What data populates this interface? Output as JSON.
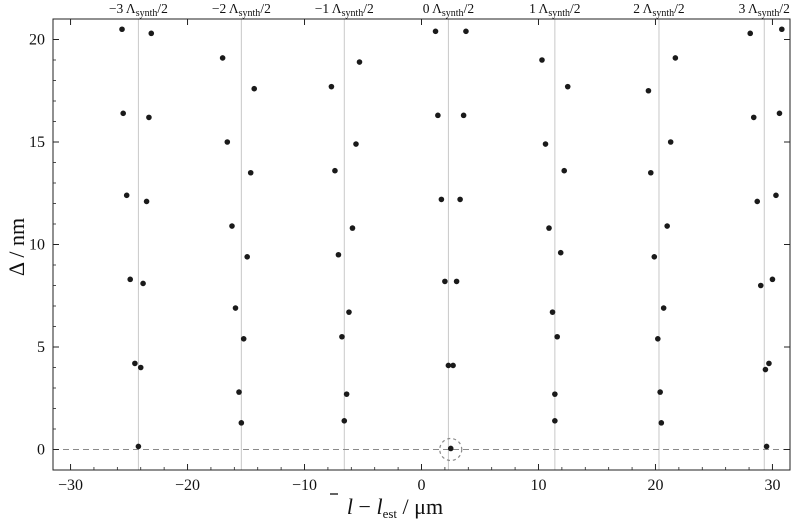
{
  "chart_data": {
    "type": "scatter",
    "title": "",
    "xlabel": "l̄ − l_est / μm",
    "xlabel_parts": {
      "var": "l",
      "minus": " − ",
      "est_base": "l",
      "est_sub": "est",
      "unit": " / μm"
    },
    "ylabel": "Δ / nm",
    "xlim": [
      -31.5,
      31.5
    ],
    "ylim": [
      -1,
      21
    ],
    "x_ticks": [
      -30,
      -20,
      -10,
      0,
      10,
      20,
      30
    ],
    "y_ticks": [
      0,
      5,
      10,
      15,
      20
    ],
    "grid": false,
    "reference_lines_x": [
      -24.2,
      -15.4,
      -6.6,
      2.3,
      11.4,
      20.3,
      29.3
    ],
    "top_labels": [
      {
        "n": "−3",
        "sub": "synth",
        "div": "/2"
      },
      {
        "n": "−2",
        "sub": "synth",
        "div": "/2"
      },
      {
        "n": "−1",
        "sub": "synth",
        "div": "/2"
      },
      {
        "n": "0",
        "sub": "synth",
        "div": "/2"
      },
      {
        "n": "1",
        "sub": "synth",
        "div": "/2"
      },
      {
        "n": "2",
        "sub": "synth",
        "div": "/2"
      },
      {
        "n": "3",
        "sub": "synth",
        "div": "/2"
      }
    ],
    "baseline_y": 0,
    "highlight_point": {
      "x": 2.5,
      "y": 0
    },
    "series": [
      {
        "points": [
          [
            -25.6,
            20.5
          ],
          [
            -23.1,
            20.3
          ],
          [
            -17.0,
            19.1
          ],
          [
            -14.3,
            17.6
          ],
          [
            -7.7,
            17.7
          ],
          [
            -5.3,
            18.9
          ],
          [
            1.2,
            20.4
          ],
          [
            3.8,
            20.4
          ],
          [
            10.3,
            19.0
          ],
          [
            12.5,
            17.7
          ],
          [
            19.4,
            17.5
          ],
          [
            21.7,
            19.1
          ],
          [
            28.1,
            20.3
          ],
          [
            30.8,
            20.5
          ],
          [
            -25.5,
            16.4
          ],
          [
            -23.3,
            16.2
          ],
          [
            -16.6,
            15.0
          ],
          [
            -14.6,
            13.5
          ],
          [
            -7.4,
            13.6
          ],
          [
            -5.6,
            14.9
          ],
          [
            1.4,
            16.3
          ],
          [
            3.6,
            16.3
          ],
          [
            10.6,
            14.9
          ],
          [
            12.2,
            13.6
          ],
          [
            19.6,
            13.5
          ],
          [
            21.3,
            15.0
          ],
          [
            28.4,
            16.2
          ],
          [
            30.6,
            16.4
          ],
          [
            -25.2,
            12.4
          ],
          [
            -23.5,
            12.1
          ],
          [
            -16.2,
            10.9
          ],
          [
            -14.9,
            9.4
          ],
          [
            -7.1,
            9.5
          ],
          [
            -5.9,
            10.8
          ],
          [
            1.7,
            12.2
          ],
          [
            3.3,
            12.2
          ],
          [
            10.9,
            10.8
          ],
          [
            11.9,
            9.6
          ],
          [
            19.9,
            9.4
          ],
          [
            21.0,
            10.9
          ],
          [
            28.7,
            12.1
          ],
          [
            30.3,
            12.4
          ],
          [
            -24.9,
            8.3
          ],
          [
            -23.8,
            8.1
          ],
          [
            -15.9,
            6.9
          ],
          [
            -15.2,
            5.4
          ],
          [
            -6.8,
            5.5
          ],
          [
            -6.2,
            6.7
          ],
          [
            2.0,
            8.2
          ],
          [
            3.0,
            8.2
          ],
          [
            11.2,
            6.7
          ],
          [
            11.6,
            5.5
          ],
          [
            20.2,
            5.4
          ],
          [
            20.7,
            6.9
          ],
          [
            29.0,
            8.0
          ],
          [
            30.0,
            8.3
          ],
          [
            -24.5,
            4.2
          ],
          [
            -24.0,
            4.0
          ],
          [
            -15.6,
            2.8
          ],
          [
            -15.4,
            1.3
          ],
          [
            -6.6,
            1.4
          ],
          [
            -6.4,
            2.7
          ],
          [
            2.3,
            4.1
          ],
          [
            2.7,
            4.1
          ],
          [
            11.4,
            2.7
          ],
          [
            11.4,
            1.4
          ],
          [
            20.5,
            1.3
          ],
          [
            20.4,
            2.8
          ],
          [
            29.4,
            3.9
          ],
          [
            29.7,
            4.2
          ],
          [
            -24.2,
            0.15
          ],
          [
            2.5,
            0.05
          ],
          [
            29.5,
            0.15
          ]
        ]
      }
    ]
  }
}
